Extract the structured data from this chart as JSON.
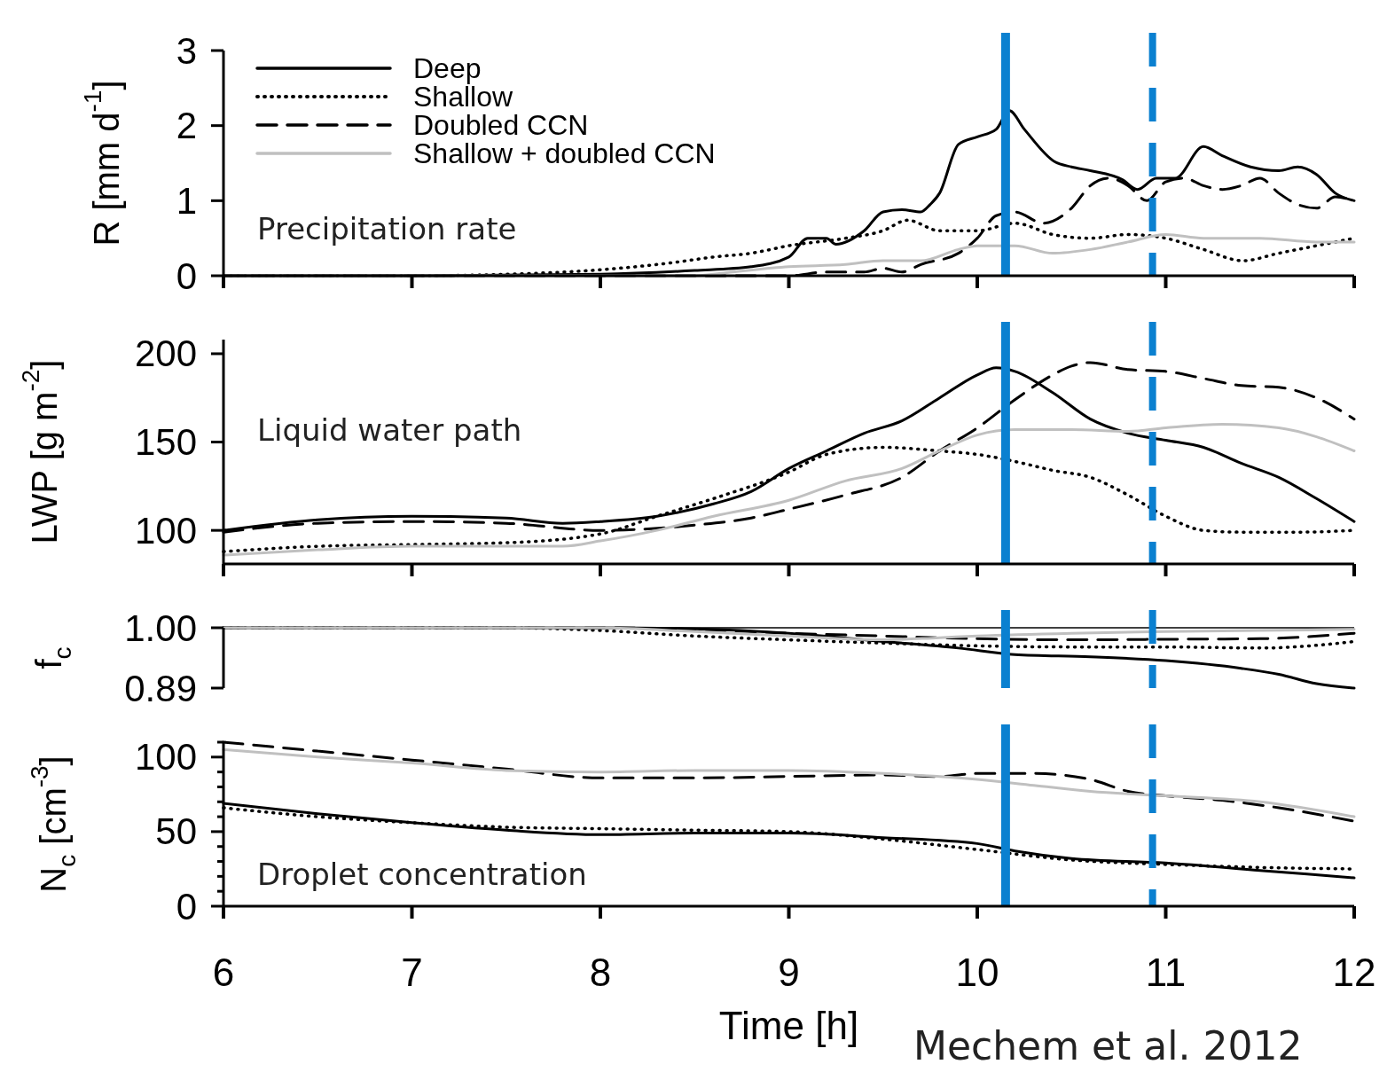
{
  "chart_data": [
    {
      "type": "line",
      "ylabel": "R [mm d$^{-1}$]",
      "annotations": [
        "Precipitation rate"
      ],
      "xlim": [
        6,
        12
      ],
      "xticks": [
        6,
        7,
        8,
        9,
        10,
        11,
        12
      ],
      "ylim": [
        0,
        3
      ],
      "yticks": [
        0,
        1,
        2,
        3
      ],
      "tick_labels": "y",
      "legend": "top left",
      "ref_lines": [
        {
          "axis": "x",
          "value": 10.15,
          "color": "#0a80d0",
          "line_style": "solid"
        },
        {
          "axis": "x",
          "value": 10.93,
          "color": "#0a80d0",
          "line_style": "dashed"
        }
      ],
      "series": [
        {
          "name": "Deep",
          "color": "#000000",
          "line_style": "solid",
          "x": [
            6,
            7,
            8,
            8.5,
            8.8,
            9,
            9.1,
            9.2,
            9.25,
            9.4,
            9.5,
            9.6,
            9.7,
            9.75,
            9.8,
            9.9,
            10,
            10.1,
            10.17,
            10.25,
            10.41,
            10.5,
            10.6,
            10.77,
            10.85,
            10.95,
            11.05,
            11.2,
            11.3,
            11.45,
            11.6,
            11.7,
            11.8,
            11.9,
            12
          ],
          "values": [
            0,
            0,
            0.02,
            0.07,
            0.12,
            0.25,
            0.5,
            0.5,
            0.42,
            0.6,
            0.85,
            0.88,
            0.85,
            0.95,
            1.1,
            1.75,
            1.85,
            1.95,
            2.2,
            1.95,
            1.52,
            1.45,
            1.4,
            1.28,
            1.15,
            1.3,
            1.3,
            1.72,
            1.6,
            1.45,
            1.4,
            1.45,
            1.35,
            1.1,
            1
          ]
        },
        {
          "name": "Shallow",
          "color": "#000000",
          "line_style": "dotted",
          "x": [
            6,
            7,
            7.5,
            8,
            8.4,
            8.6,
            8.8,
            9,
            9.3,
            9.5,
            9.63,
            9.8,
            10,
            10.2,
            10.4,
            10.6,
            10.8,
            11,
            11.2,
            11.41,
            11.6,
            11.8,
            12
          ],
          "values": [
            0,
            0,
            0.02,
            0.08,
            0.18,
            0.25,
            0.3,
            0.4,
            0.5,
            0.6,
            0.74,
            0.6,
            0.6,
            0.7,
            0.55,
            0.5,
            0.55,
            0.5,
            0.35,
            0.2,
            0.3,
            0.4,
            0.5
          ]
        },
        {
          "name": "Doubled CCN",
          "color": "#000000",
          "line_style": "dashed",
          "x": [
            6,
            8,
            9,
            9.2,
            9.4,
            9.5,
            9.6,
            9.7,
            9.9,
            10,
            10.1,
            10.2,
            10.35,
            10.5,
            10.6,
            10.7,
            10.8,
            10.9,
            11,
            11.1,
            11.2,
            11.3,
            11.4,
            11.5,
            11.6,
            11.7,
            11.8,
            11.9,
            12
          ],
          "values": [
            0,
            0,
            0,
            0.05,
            0.05,
            0.1,
            0.05,
            0.15,
            0.3,
            0.5,
            0.8,
            0.85,
            0.7,
            0.9,
            1.2,
            1.3,
            1.2,
            1,
            1.25,
            1.3,
            1.2,
            1.15,
            1.2,
            1.3,
            1.1,
            0.95,
            0.9,
            1.05,
            1
          ]
        },
        {
          "name": "Shallow + doubled CCN",
          "color": "#c0c0c0",
          "line_style": "solid",
          "x": [
            6,
            8,
            8.5,
            8.7,
            9,
            9.3,
            9.5,
            9.7,
            9.9,
            10,
            10.2,
            10.4,
            10.6,
            10.8,
            11,
            11.2,
            11.5,
            11.8,
            12
          ],
          "values": [
            0,
            0,
            0,
            0.05,
            0.12,
            0.15,
            0.2,
            0.2,
            0.35,
            0.4,
            0.4,
            0.3,
            0.35,
            0.45,
            0.55,
            0.5,
            0.5,
            0.45,
            0.45
          ]
        }
      ]
    },
    {
      "type": "line",
      "ylabel": "LWP [g m$^{-2}$]",
      "annotations": [
        "Liquid water path"
      ],
      "xlim": [
        6,
        12
      ],
      "xticks": [
        6,
        7,
        8,
        9,
        10,
        11,
        12
      ],
      "ylim": [
        81,
        208
      ],
      "yticks": [
        100,
        150,
        200
      ],
      "tick_labels": "y",
      "ref_lines": [
        {
          "axis": "x",
          "value": 10.15,
          "color": "#0a80d0",
          "line_style": "solid"
        },
        {
          "axis": "x",
          "value": 10.93,
          "color": "#0a80d0",
          "line_style": "dashed"
        }
      ],
      "series": [
        {
          "color": "#000000",
          "line_style": "solid",
          "x": [
            6,
            6.5,
            7,
            7.5,
            7.8,
            8,
            8.3,
            8.6,
            8.8,
            9,
            9.2,
            9.4,
            9.6,
            9.8,
            10,
            10.1,
            10.2,
            10.4,
            10.6,
            10.8,
            11,
            11.2,
            11.4,
            11.6,
            11.8,
            12
          ],
          "values": [
            100,
            106,
            108,
            107,
            104,
            105,
            108,
            115,
            122,
            135,
            145,
            155,
            162,
            175,
            188,
            192,
            190,
            178,
            163,
            155,
            151,
            147,
            138,
            130,
            118,
            105
          ]
        },
        {
          "color": "#000000",
          "line_style": "dotted",
          "x": [
            6,
            6.5,
            7,
            7.5,
            8,
            8.3,
            8.6,
            9,
            9.2,
            9.5,
            9.8,
            10,
            10.2,
            10.4,
            10.6,
            10.8,
            11,
            11.2,
            11.4,
            11.7,
            12
          ],
          "values": [
            88,
            91,
            92,
            93,
            98,
            108,
            118,
            133,
            143,
            147,
            145,
            143,
            139,
            134,
            130,
            120,
            108,
            100,
            99,
            99,
            100
          ]
        },
        {
          "color": "#000000",
          "line_style": "dashed",
          "x": [
            6,
            6.5,
            7,
            7.5,
            8,
            8.5,
            8.8,
            9,
            9.3,
            9.6,
            9.8,
            10,
            10.2,
            10.4,
            10.5,
            10.6,
            10.8,
            11,
            11.2,
            11.4,
            11.6,
            11.8,
            12
          ],
          "values": [
            99,
            104,
            105,
            104,
            100,
            103,
            107,
            112,
            120,
            130,
            145,
            158,
            174,
            188,
            193,
            195,
            191,
            190,
            186,
            182,
            181,
            175,
            163
          ]
        },
        {
          "color": "#c0c0c0",
          "line_style": "solid",
          "x": [
            6,
            6.5,
            7,
            7.5,
            7.8,
            8,
            8.3,
            8.6,
            9,
            9.3,
            9.6,
            9.8,
            10,
            10.2,
            10.5,
            10.8,
            11,
            11.3,
            11.6,
            11.8,
            12
          ],
          "values": [
            86,
            89,
            91,
            91,
            91,
            94,
            100,
            108,
            117,
            128,
            135,
            145,
            154,
            157,
            157,
            156,
            158,
            160,
            158,
            153,
            145
          ]
        }
      ]
    },
    {
      "type": "line",
      "ylabel": "f$_{c}$",
      "xlim": [
        6,
        12
      ],
      "ylim": [
        0.89,
        1.0
      ],
      "yticks": [
        {
          "value": 1.0,
          "label": "1.00"
        },
        0.89
      ],
      "tick_labels": "y",
      "ref_lines": [
        {
          "axis": "y",
          "value": 1.0,
          "color": "#000000",
          "line_style": "solid"
        },
        {
          "axis": "x",
          "value": 10.15,
          "color": "#0a80d0",
          "line_style": "solid"
        },
        {
          "axis": "x",
          "value": 10.93,
          "color": "#0a80d0",
          "line_style": "dashed"
        }
      ],
      "series": [
        {
          "color": "#000000",
          "line_style": "solid",
          "x": [
            6,
            7,
            8,
            8.5,
            9,
            9.5,
            9.9,
            10.2,
            10.6,
            11,
            11.4,
            11.6,
            11.8,
            12
          ],
          "values": [
            1,
            1,
            1,
            0.998,
            0.99,
            0.975,
            0.963,
            0.951,
            0.947,
            0.94,
            0.926,
            0.915,
            0.898,
            0.89
          ]
        },
        {
          "color": "#000000",
          "line_style": "dotted",
          "x": [
            6,
            7.5,
            8,
            8.5,
            9,
            9.5,
            10,
            10.5,
            11,
            11.5,
            11.8,
            12
          ],
          "values": [
            1,
            1,
            0.995,
            0.985,
            0.978,
            0.972,
            0.967,
            0.965,
            0.965,
            0.963,
            0.968,
            0.975
          ]
        },
        {
          "color": "#000000",
          "line_style": "dashed",
          "x": [
            6,
            8,
            8.5,
            9,
            9.5,
            10,
            10.5,
            11,
            11.5,
            12
          ],
          "values": [
            1,
            1,
            0.997,
            0.99,
            0.985,
            0.98,
            0.978,
            0.979,
            0.98,
            0.99
          ]
        },
        {
          "color": "#c0c0c0",
          "line_style": "solid",
          "x": [
            6,
            8,
            8.5,
            9,
            9.5,
            9.8,
            10,
            10.5,
            11,
            11.5,
            12
          ],
          "values": [
            1,
            1,
            0.993,
            0.985,
            0.978,
            0.982,
            0.985,
            0.99,
            0.993,
            0.995,
            0.997
          ]
        }
      ]
    },
    {
      "type": "line",
      "ylabel": "N$_{c}$ [cm$^{-3}$]",
      "xlabel": "Time [h]",
      "annotations": [
        "Droplet concentration",
        "Mechem et al. 2012"
      ],
      "xlim": [
        6,
        12
      ],
      "xticks": [
        6,
        7,
        8,
        9,
        10,
        11,
        12
      ],
      "ylim": [
        0,
        110
      ],
      "yticks": [
        0,
        {
          "value": 10,
          "label": null
        },
        {
          "value": 20,
          "label": null
        },
        {
          "value": 30,
          "label": null
        },
        {
          "value": 40,
          "label": null
        },
        50,
        {
          "value": 60,
          "label": null
        },
        {
          "value": 70,
          "label": null
        },
        {
          "value": 80,
          "label": null
        },
        {
          "value": 90,
          "label": null
        },
        100,
        {
          "value": 110,
          "label": null
        }
      ],
      "ref_lines": [
        {
          "axis": "x",
          "value": 10.15,
          "color": "#0a80d0",
          "line_style": "solid"
        },
        {
          "axis": "x",
          "value": 10.93,
          "color": "#0a80d0",
          "line_style": "dashed"
        }
      ],
      "series": [
        {
          "color": "#000000",
          "line_style": "solid",
          "x": [
            6,
            6.5,
            7,
            7.5,
            8,
            8.5,
            9,
            9.5,
            10,
            10.2,
            10.5,
            11,
            11.5,
            12
          ],
          "values": [
            69,
            62,
            56,
            51,
            48,
            49,
            49,
            46,
            42,
            37,
            32,
            29,
            24,
            19
          ]
        },
        {
          "color": "#000000",
          "line_style": "dotted",
          "x": [
            6,
            6.5,
            7,
            7.5,
            8,
            8.5,
            9,
            9.5,
            10,
            10.5,
            11,
            11.5,
            12
          ],
          "values": [
            66,
            60,
            56,
            53,
            52,
            51,
            50,
            45,
            38,
            31,
            28,
            26,
            25
          ]
        },
        {
          "color": "#000000",
          "line_style": "dashed",
          "x": [
            6,
            6.5,
            7,
            7.5,
            8,
            8.5,
            9,
            9.5,
            9.8,
            10,
            10.3,
            10.6,
            10.8,
            11,
            11.3,
            11.6,
            12
          ],
          "values": [
            110,
            104,
            98,
            92,
            86,
            86,
            87,
            88,
            87,
            89,
            89,
            85,
            77,
            74,
            71,
            66,
            57
          ]
        },
        {
          "color": "#c0c0c0",
          "line_style": "solid",
          "x": [
            6,
            6.5,
            7,
            7.5,
            8,
            8.5,
            9,
            9.5,
            10,
            10.3,
            10.6,
            11,
            11.5,
            12
          ],
          "values": [
            105,
            100,
            96,
            91,
            90,
            91,
            91,
            89,
            85,
            81,
            77,
            74,
            70,
            60
          ]
        }
      ]
    }
  ]
}
